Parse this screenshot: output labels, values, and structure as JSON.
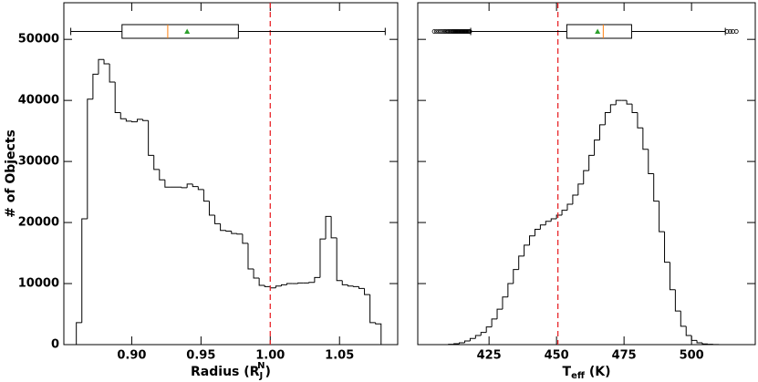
{
  "chart_data": [
    {
      "type": "histogram",
      "ylabel": "# of Objects",
      "xlabel": {
        "main": "Radius (R",
        "sub": "J",
        "sup": "N",
        "tail": ")"
      },
      "bins": [
        0.86,
        0.864,
        0.868,
        0.872,
        0.876,
        0.88,
        0.884,
        0.888,
        0.892,
        0.896,
        0.9,
        0.904,
        0.908,
        0.912,
        0.916,
        0.92,
        0.924,
        0.928,
        0.932,
        0.936,
        0.94,
        0.944,
        0.948,
        0.952,
        0.956,
        0.96,
        0.964,
        0.968,
        0.972,
        0.976,
        0.98,
        0.984,
        0.988,
        0.992,
        0.996,
        1.0,
        1.004,
        1.008,
        1.012,
        1.016,
        1.02,
        1.024,
        1.028,
        1.032,
        1.036,
        1.04,
        1.044,
        1.048,
        1.052,
        1.056,
        1.06,
        1.064,
        1.068,
        1.072,
        1.076,
        1.08
      ],
      "values": [
        3600,
        20600,
        40200,
        44300,
        46700,
        46000,
        43000,
        38000,
        37000,
        36600,
        36500,
        36900,
        36700,
        31000,
        28700,
        27000,
        25800,
        25800,
        25800,
        25700,
        26300,
        25900,
        25400,
        23500,
        21200,
        19800,
        18700,
        18600,
        18200,
        18100,
        16600,
        12400,
        10900,
        9700,
        9500,
        9300,
        9600,
        9800,
        10000,
        10000,
        10100,
        10100,
        10200,
        11000,
        17300,
        21000,
        17500,
        10500,
        9800,
        9600,
        9500,
        9200,
        8200,
        3600,
        3400
      ],
      "color": "#000000",
      "xlim": [
        0.851,
        1.092
      ],
      "xticks": [
        {
          "value": 0.9,
          "label": "0.90"
        },
        {
          "value": 0.95,
          "label": "0.95"
        },
        {
          "value": 1.0,
          "label": "1.00"
        },
        {
          "value": 1.05,
          "label": "1.05"
        }
      ],
      "ylim": [
        0,
        56000
      ],
      "yticks": [
        0,
        10000,
        20000,
        30000,
        40000,
        50000
      ],
      "ytick_labels": true,
      "vline": 1.0,
      "vline_color": "#e8262a",
      "boxplot": {
        "whislo": 0.856,
        "q1": 0.893,
        "med": 0.926,
        "mean": 0.94,
        "q3": 0.977,
        "whishi": 1.083,
        "fliers": [],
        "median_color": "#ff7f0e",
        "mean_color": "#2ca02c"
      }
    },
    {
      "type": "histogram",
      "xlabel": {
        "main": "T",
        "sub": "eff",
        "tail": " (K)"
      },
      "bins": [
        410,
        412,
        414,
        416,
        418,
        420,
        422,
        424,
        426,
        428,
        430,
        432,
        434,
        436,
        438,
        440,
        442,
        444,
        446,
        448,
        450,
        452,
        454,
        456,
        458,
        460,
        462,
        464,
        466,
        468,
        470,
        472,
        474,
        476,
        478,
        480,
        482,
        484,
        486,
        488,
        490,
        492,
        494,
        496,
        498,
        500,
        502,
        504,
        506,
        508,
        510
      ],
      "values": [
        50,
        150,
        300,
        600,
        1000,
        1500,
        2000,
        2900,
        4200,
        5800,
        7800,
        10000,
        12300,
        14500,
        16300,
        17800,
        18900,
        19600,
        20200,
        20600,
        21200,
        22000,
        23000,
        24500,
        26300,
        28500,
        31000,
        33500,
        36000,
        38000,
        39300,
        40000,
        40000,
        39400,
        38000,
        35500,
        32000,
        28000,
        23500,
        18500,
        13500,
        9000,
        5500,
        3000,
        1500,
        700,
        300,
        120,
        50,
        20
      ],
      "color": "#000000",
      "xlim": [
        398.6,
        523.6
      ],
      "xticks": [
        425,
        450,
        475,
        500
      ],
      "ylim": [
        0,
        56000
      ],
      "yticks": [
        0,
        10000,
        20000,
        30000,
        40000,
        50000
      ],
      "ytick_labels": false,
      "vline": 450.5,
      "vline_color": "#e8262a",
      "boxplot": {
        "whislo": 418.2,
        "q1": 453.8,
        "med": 467.3,
        "mean": 465.2,
        "q3": 477.8,
        "whishi": 512.5,
        "fliers": [
          404.7,
          405.5,
          406.3,
          407,
          407.6,
          408.2,
          408.7,
          409.2,
          409.7,
          410.1,
          410.5,
          410.9,
          411.3,
          411.6,
          411.9,
          412.2,
          412.5,
          412.8,
          413.1,
          413.4,
          413.7,
          414,
          414.3,
          414.6,
          414.9,
          415.2,
          415.5,
          415.8,
          416.1,
          416.4,
          416.7,
          417,
          417.3,
          417.6,
          417.9,
          513.2,
          514.3,
          515.3,
          516.6
        ],
        "median_color": "#ff7f0e",
        "mean_color": "#2ca02c"
      }
    }
  ]
}
